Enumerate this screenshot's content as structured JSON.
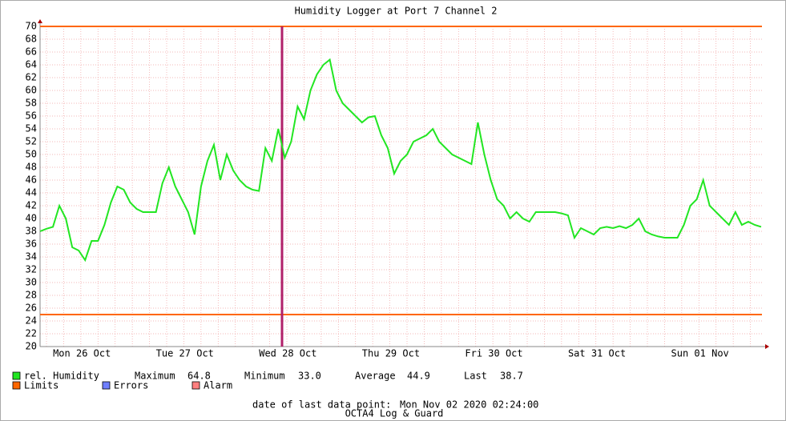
{
  "chart_data": {
    "type": "line",
    "title": "Humidity Logger at Port 7 Channel 2",
    "categories": [
      null,
      null,
      null,
      null,
      null,
      null,
      "Mon 26 Oct",
      null,
      null,
      null,
      null,
      null,
      null,
      null,
      null,
      null,
      null,
      null,
      null,
      null,
      null,
      null,
      "Tue 27 Oct",
      null,
      null,
      null,
      null,
      null,
      null,
      null,
      null,
      null,
      null,
      null,
      null,
      null,
      null,
      null,
      "Wed 28 Oct",
      null,
      null,
      null,
      null,
      null,
      null,
      null,
      null,
      null,
      null,
      null,
      null,
      null,
      null,
      null,
      "Thu 29 Oct",
      null,
      null,
      null,
      null,
      null,
      null,
      null,
      null,
      null,
      null,
      null,
      null,
      null,
      null,
      null,
      "Fri 30 Oct",
      null,
      null,
      null,
      null,
      null,
      null,
      null,
      null,
      null,
      null,
      null,
      null,
      null,
      null,
      null,
      "Sat 31 Oct",
      null,
      null,
      null,
      null,
      null,
      null,
      null,
      null,
      null,
      null,
      null,
      null,
      null,
      null,
      null,
      "Sun 01 Nov",
      null,
      null,
      null,
      null,
      null,
      null,
      null,
      null,
      null,
      null
    ],
    "series": [
      {
        "name": "rel. Humidity",
        "color": "#22e622",
        "values": [
          38,
          38.4,
          38.7,
          42,
          40,
          35.5,
          35,
          33.5,
          36.5,
          36.5,
          39,
          42.5,
          45,
          44.5,
          42.5,
          41.5,
          41,
          41,
          41,
          45.5,
          48,
          45,
          43,
          41,
          37.5,
          45,
          49,
          51.5,
          46,
          50,
          47.5,
          46,
          45,
          44.5,
          44.3,
          51,
          49,
          54,
          49.5,
          52,
          57.5,
          55.5,
          60,
          62.5,
          64,
          64.8,
          60,
          58,
          57,
          56,
          55,
          55.8,
          56,
          53,
          51,
          47,
          49,
          50,
          52,
          52.5,
          53,
          54,
          52,
          51,
          50,
          49.5,
          49,
          48.5,
          55,
          50,
          46,
          43,
          42,
          40,
          41,
          40,
          39.5,
          41,
          41,
          41,
          41,
          40.8,
          40.5,
          37,
          38.5,
          38,
          37.5,
          38.5,
          38.7,
          38.5,
          38.8,
          38.5,
          39,
          40,
          38,
          37.5,
          37.2,
          37,
          37,
          37,
          39,
          42,
          43,
          46,
          42,
          41,
          40,
          39,
          41,
          39,
          39.5,
          39,
          38.7
        ]
      }
    ],
    "ylim": [
      20,
      70
    ],
    "yticks": [
      20,
      22,
      24,
      26,
      28,
      30,
      32,
      34,
      36,
      38,
      40,
      42,
      44,
      46,
      48,
      50,
      52,
      54,
      56,
      58,
      60,
      62,
      64,
      66,
      68,
      70
    ],
    "grid": true,
    "limits": {
      "name": "Limits",
      "color": "#ff6600",
      "values": [
        70,
        25
      ]
    },
    "legend_extra": [
      {
        "name": "Errors",
        "color": "#6f7fff"
      },
      {
        "name": "Alarm",
        "color": "#ff7f7f"
      }
    ],
    "stats": [
      {
        "name": "Maximum",
        "text": "64.8"
      },
      {
        "name": "Minimum",
        "text": "33.0"
      },
      {
        "name": "Average",
        "text": "44.9"
      },
      {
        "name": "Last",
        "text": "38.7"
      }
    ],
    "footer": {
      "label": "date of last data point:",
      "value": "Mon Nov 02 2020 02:24:00"
    },
    "credit": "OCTA4 Log & Guard"
  }
}
